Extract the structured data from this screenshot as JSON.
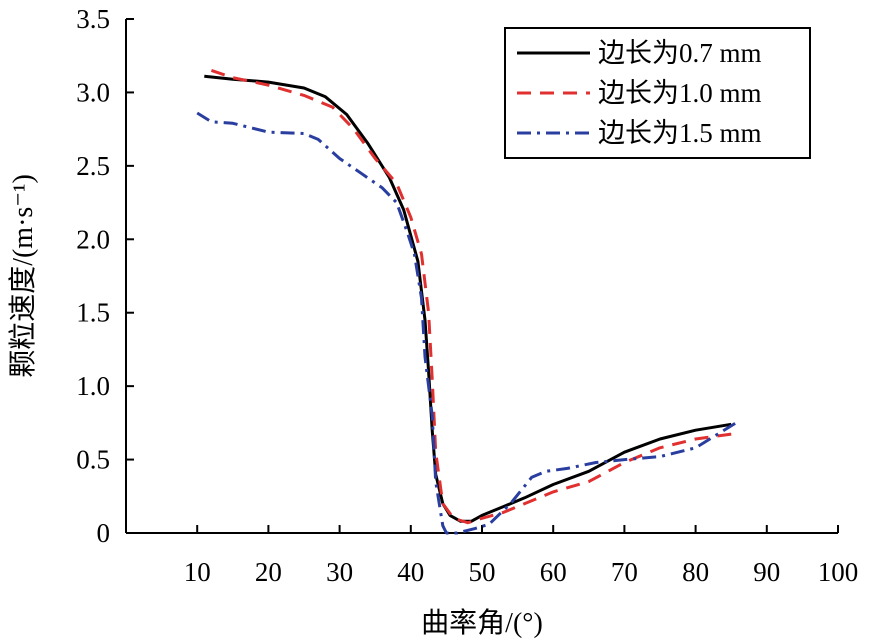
{
  "chart_data": {
    "type": "line",
    "xlabel": "曲率角/(°)",
    "ylabel": "颗粒速度/(m·s⁻¹)",
    "xlim": [
      0,
      100
    ],
    "ylim": [
      0,
      3.5
    ],
    "x_ticks": [
      "10",
      "20",
      "30",
      "40",
      "50",
      "60",
      "70",
      "80",
      "90",
      "100"
    ],
    "y_ticks": [
      "0",
      "0.5",
      "1.0",
      "1.5",
      "2.0",
      "2.5",
      "3.0",
      "3.5"
    ],
    "grid": false,
    "legend_position": "top-right",
    "series": [
      {
        "name": "边长为0.7 mm",
        "style": "solid",
        "color": "#000000",
        "points": [
          [
            11,
            3.11
          ],
          [
            15,
            3.09
          ],
          [
            20,
            3.07
          ],
          [
            25,
            3.03
          ],
          [
            28,
            2.97
          ],
          [
            31,
            2.85
          ],
          [
            34,
            2.65
          ],
          [
            37,
            2.42
          ],
          [
            39,
            2.2
          ],
          [
            41,
            1.85
          ],
          [
            42,
            1.45
          ],
          [
            42.5,
            1.1
          ],
          [
            43,
            0.7
          ],
          [
            43.5,
            0.4
          ],
          [
            44.5,
            0.2
          ],
          [
            45.5,
            0.12
          ],
          [
            47,
            0.08
          ],
          [
            48.5,
            0.08
          ],
          [
            50,
            0.12
          ],
          [
            53,
            0.18
          ],
          [
            56,
            0.24
          ],
          [
            60,
            0.33
          ],
          [
            65,
            0.42
          ],
          [
            70,
            0.55
          ],
          [
            75,
            0.64
          ],
          [
            80,
            0.7
          ],
          [
            85,
            0.74
          ]
        ]
      },
      {
        "name": "边长为1.0 mm",
        "style": "dashed",
        "color": "#e03030",
        "points": [
          [
            12,
            3.15
          ],
          [
            15,
            3.1
          ],
          [
            20,
            3.05
          ],
          [
            25,
            2.98
          ],
          [
            29,
            2.9
          ],
          [
            32,
            2.75
          ],
          [
            35,
            2.55
          ],
          [
            38,
            2.38
          ],
          [
            40,
            2.15
          ],
          [
            41.5,
            1.9
          ],
          [
            42.5,
            1.5
          ],
          [
            43,
            1.05
          ],
          [
            43.5,
            0.55
          ],
          [
            44.5,
            0.2
          ],
          [
            46,
            0.1
          ],
          [
            48,
            0.07
          ],
          [
            50,
            0.1
          ],
          [
            53,
            0.14
          ],
          [
            56,
            0.2
          ],
          [
            60,
            0.28
          ],
          [
            65,
            0.35
          ],
          [
            70,
            0.48
          ],
          [
            75,
            0.58
          ],
          [
            80,
            0.64
          ],
          [
            86,
            0.68
          ]
        ]
      },
      {
        "name": "边长为1.5 mm",
        "style": "dashdot",
        "color": "#2a3ea0",
        "points": [
          [
            10,
            2.86
          ],
          [
            12,
            2.8
          ],
          [
            15,
            2.79
          ],
          [
            20,
            2.73
          ],
          [
            25,
            2.72
          ],
          [
            27,
            2.68
          ],
          [
            30,
            2.55
          ],
          [
            33,
            2.45
          ],
          [
            36,
            2.35
          ],
          [
            38,
            2.25
          ],
          [
            39.5,
            2.05
          ],
          [
            40.5,
            1.9
          ],
          [
            41.5,
            1.6
          ],
          [
            42,
            1.2
          ],
          [
            43,
            0.8
          ],
          [
            43.5,
            0.35
          ],
          [
            44.5,
            0.05
          ],
          [
            45,
            0.0
          ],
          [
            46.5,
            0.0
          ],
          [
            49,
            0.03
          ],
          [
            51,
            0.06
          ],
          [
            54,
            0.2
          ],
          [
            57,
            0.38
          ],
          [
            59,
            0.42
          ],
          [
            62,
            0.44
          ],
          [
            66,
            0.48
          ],
          [
            70,
            0.5
          ],
          [
            75,
            0.52
          ],
          [
            80,
            0.58
          ],
          [
            86,
            0.76
          ]
        ]
      }
    ]
  }
}
